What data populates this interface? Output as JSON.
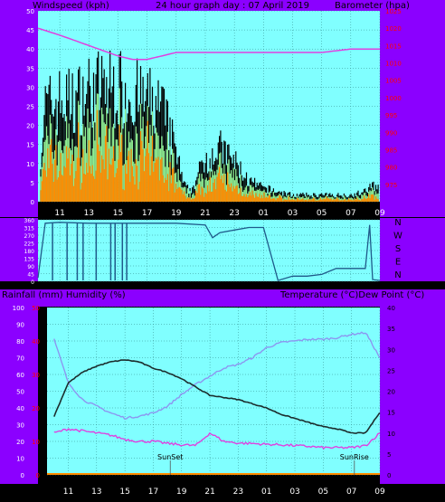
{
  "header": {
    "left_title": "Windspeed (kph)",
    "center_title": "24 hour graph day : 07 April 2019",
    "right_title": "Barometer (hpa)"
  },
  "mid_header": {
    "left_title": "Rainfall (mm)  Humidity (%)",
    "right_title": "Temperature (°C)Dew Point (°C)"
  },
  "colors": {
    "frame": "#8B00FF",
    "plot_bg": "#80FFFF",
    "grid": "#2E8B8B",
    "wind_gust": "#000000",
    "wind_avg": "#90EE90",
    "wind_low": "#FF8C00",
    "barometer": "#E040E0",
    "direction": "#1F5A8A",
    "temperature": "#1C2E2E",
    "humidity": "#8C96F0",
    "dewpoint": "#E040E0",
    "rain": "#FF8C00",
    "left_axis_text": "#FFFFFF",
    "right_axis_text": "#FF0000"
  },
  "x_ticks": [
    "11",
    "13",
    "15",
    "17",
    "19",
    "21",
    "23",
    "01",
    "03",
    "05",
    "07",
    "09"
  ],
  "chart_data": [
    {
      "type": "bar",
      "title": "24 hour graph day : 07 April 2019",
      "ylabel": "Windspeed (kph)",
      "y2label": "Barometer (hpa)",
      "ylim": [
        0,
        50
      ],
      "y2lim": [
        970,
        1025
      ],
      "yticks": [
        "0",
        "5",
        "10",
        "15",
        "20",
        "25",
        "30",
        "35",
        "40",
        "45",
        "50"
      ],
      "y2ticks": [
        "975",
        "980",
        "985",
        "990",
        "995",
        "1000",
        "1005",
        "1010",
        "1015",
        "1020",
        "1025"
      ],
      "series": [
        {
          "name": "Windspeed (kph)",
          "hours": [
            9.5,
            10,
            11,
            12,
            13,
            14,
            15,
            16,
            17,
            18,
            19,
            19.5,
            20,
            21,
            22,
            23,
            24,
            25,
            26,
            27,
            28,
            29,
            30,
            31,
            32,
            32.5,
            33
          ],
          "values": [
            8,
            28,
            30,
            30,
            33,
            34,
            34,
            32,
            30,
            28,
            15,
            5,
            3,
            13,
            16,
            12,
            6,
            4,
            3,
            2,
            2,
            2,
            2,
            2,
            3,
            5,
            5
          ]
        },
        {
          "name": "Barometer (hpa)",
          "hours": [
            9.5,
            11,
            13,
            15,
            16,
            17,
            18,
            19,
            21,
            23,
            25,
            27,
            29,
            31,
            33
          ],
          "values": [
            1020,
            1018,
            1015,
            1012,
            1011,
            1011,
            1012,
            1013,
            1013,
            1013,
            1013,
            1013,
            1013,
            1014,
            1014
          ]
        }
      ]
    },
    {
      "type": "line",
      "ylabel": "",
      "ylim": [
        0,
        360
      ],
      "yticks": [
        "0",
        "45",
        "90",
        "135",
        "180",
        "225",
        "270",
        "315",
        "360"
      ],
      "y2ticks": [
        "N",
        "W",
        "S",
        "E",
        "N"
      ],
      "series": [
        {
          "name": "",
          "hours": [
            9.5,
            10,
            11,
            13,
            15,
            17,
            19,
            21,
            21.5,
            22,
            23,
            24,
            25,
            26,
            27,
            28,
            29,
            30,
            31,
            32,
            32.3,
            32.5,
            33
          ],
          "values": [
            20,
            340,
            345,
            340,
            340,
            340,
            340,
            330,
            255,
            285,
            300,
            315,
            315,
            5,
            30,
            30,
            40,
            75,
            75,
            75,
            330,
            10,
            5
          ]
        }
      ]
    },
    {
      "type": "line",
      "ylim": [
        0,
        100
      ],
      "y2lim": [
        0,
        40
      ],
      "yticks": [
        "0",
        "10",
        "20",
        "30",
        "40",
        "50",
        "60",
        "70",
        "80",
        "90",
        "100"
      ],
      "y3ticks": [
        "0",
        "10",
        "20",
        "30",
        "40",
        "50"
      ],
      "y2ticks": [
        "0",
        "5",
        "10",
        "15",
        "20",
        "25",
        "30",
        "35",
        "40"
      ],
      "annotations": [
        "SunSet",
        "SunRise"
      ],
      "series": [
        {
          "name": "Temperature (°C)",
          "hours": [
            10,
            11,
            12,
            13,
            14,
            15,
            16,
            17,
            18,
            19,
            20,
            21,
            22,
            23,
            24,
            25,
            26,
            27,
            28,
            29,
            30,
            31,
            32,
            33
          ],
          "values": [
            14,
            22,
            24.5,
            26,
            27,
            27.5,
            27,
            25.5,
            24.5,
            23,
            21,
            19,
            18.5,
            18,
            17,
            16,
            14.5,
            13.5,
            12.5,
            11.5,
            11,
            10,
            10,
            15
          ]
        },
        {
          "name": "Humidity (%)",
          "hours": [
            10,
            11,
            12,
            13,
            14,
            15,
            16,
            17,
            18,
            19,
            20,
            21,
            22,
            23,
            24,
            25,
            26,
            27,
            28,
            29,
            30,
            31,
            32,
            33
          ],
          "values": [
            81,
            55,
            45,
            41,
            37,
            34,
            35,
            37,
            41,
            48,
            54,
            59,
            64,
            66,
            70,
            76,
            79,
            80,
            81,
            81,
            82,
            84,
            85,
            70
          ]
        },
        {
          "name": "Dew Point (°C)",
          "hours": [
            10,
            11,
            12,
            13,
            14,
            15,
            16,
            17,
            18,
            19,
            20,
            21,
            22,
            23,
            24,
            25,
            26,
            27,
            28,
            29,
            30,
            31,
            32,
            33
          ],
          "values": [
            10,
            11,
            10.5,
            10,
            9.5,
            8.5,
            8,
            8,
            7.5,
            7.2,
            7,
            10,
            8,
            7.6,
            7.5,
            7.3,
            7.2,
            7,
            6.8,
            6.5,
            6.5,
            6.5,
            7,
            10
          ]
        },
        {
          "name": "Rainfall (mm)",
          "hours": [
            9.5,
            33
          ],
          "values": [
            0,
            0
          ]
        }
      ]
    }
  ]
}
